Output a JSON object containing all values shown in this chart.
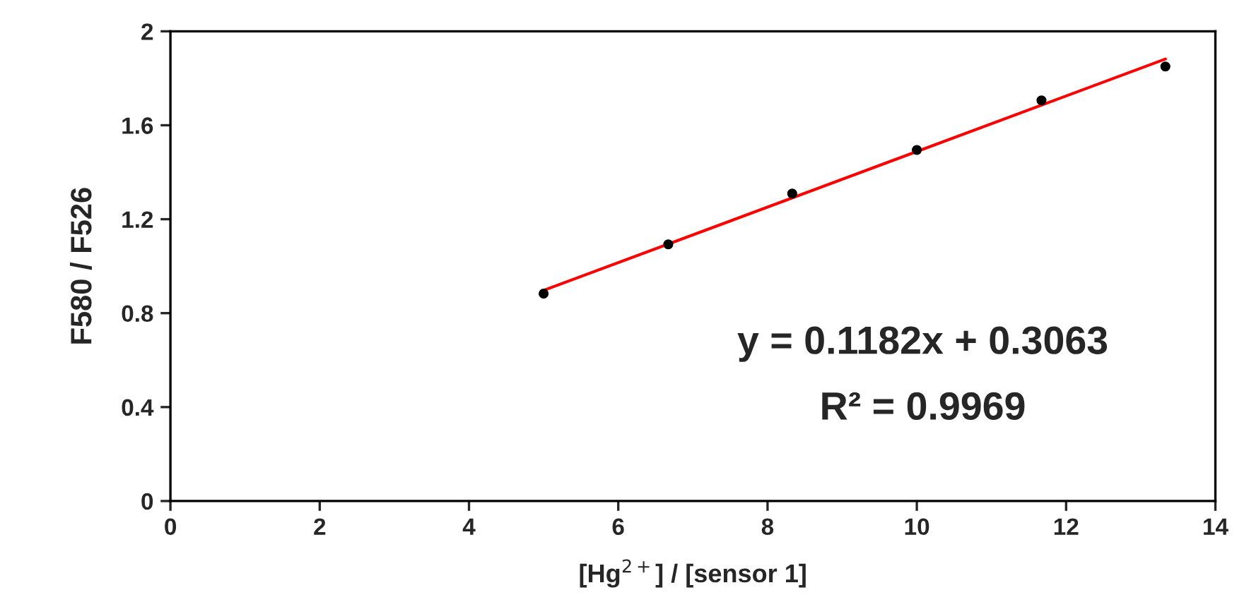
{
  "chart_data": {
    "type": "scatter",
    "xlabel": "[Hg$^{2+}$] / [sensor 1]",
    "ylabel": "F580 / F526",
    "x": [
      5,
      6.67,
      8.33,
      10,
      11.67,
      13.33
    ],
    "series": [
      {
        "color": "#000000",
        "marker": "circle",
        "values": [
          0.883,
          1.093,
          1.309,
          1.495,
          1.706,
          1.85
        ]
      },
      {
        "type": "line",
        "color": "#ff0000",
        "x": [
          5,
          13.33
        ],
        "values": [
          0.897,
          1.882
        ],
        "marker": "none"
      }
    ],
    "xlim": [
      0,
      14
    ],
    "xticks": [
      0,
      2,
      4,
      6,
      8,
      10,
      12,
      14
    ],
    "ylim": [
      0,
      2
    ],
    "yticks": [
      0,
      0.4,
      0.8,
      1.2,
      1.6,
      2
    ],
    "annotations": [
      "y = 0.1182x + 0.3063",
      "R² = 0.9969"
    ],
    "grid": false,
    "legend": false
  }
}
